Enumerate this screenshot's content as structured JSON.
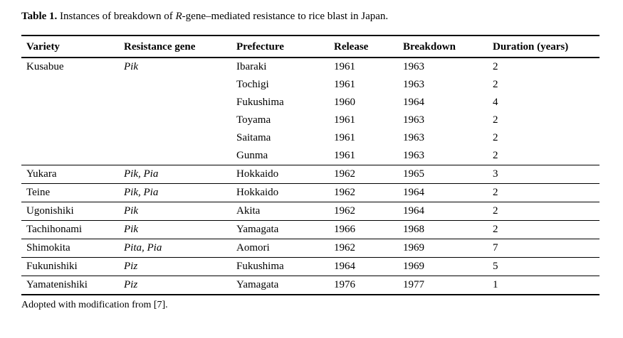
{
  "title": {
    "label": "Table 1.",
    "before_gene": " Instances of breakdown of ",
    "gene_symbol": "R",
    "after_gene": "-gene–mediated resistance to rice blast in Japan."
  },
  "table": {
    "columns": [
      "Variety",
      "Resistance gene",
      "Prefecture",
      "Release",
      "Breakdown",
      "Duration (years)"
    ],
    "groups": [
      {
        "variety": "Kusabue",
        "gene": "Pik",
        "rows": [
          {
            "prefecture": "Ibaraki",
            "release": "1961",
            "breakdown": "1963",
            "duration": "2"
          },
          {
            "prefecture": "Tochigi",
            "release": "1961",
            "breakdown": "1963",
            "duration": "2"
          },
          {
            "prefecture": "Fukushima",
            "release": "1960",
            "breakdown": "1964",
            "duration": "4"
          },
          {
            "prefecture": "Toyama",
            "release": "1961",
            "breakdown": "1963",
            "duration": "2"
          },
          {
            "prefecture": "Saitama",
            "release": "1961",
            "breakdown": "1963",
            "duration": "2"
          },
          {
            "prefecture": "Gunma",
            "release": "1961",
            "breakdown": "1963",
            "duration": "2"
          }
        ]
      },
      {
        "variety": "Yukara",
        "gene": "Pik, Pia",
        "rows": [
          {
            "prefecture": "Hokkaido",
            "release": "1962",
            "breakdown": "1965",
            "duration": "3"
          }
        ]
      },
      {
        "variety": "Teine",
        "gene": "Pik, Pia",
        "rows": [
          {
            "prefecture": "Hokkaido",
            "release": "1962",
            "breakdown": "1964",
            "duration": "2"
          }
        ]
      },
      {
        "variety": "Ugonishiki",
        "gene": "Pik",
        "rows": [
          {
            "prefecture": "Akita",
            "release": "1962",
            "breakdown": "1964",
            "duration": "2"
          }
        ]
      },
      {
        "variety": "Tachihonami",
        "gene": "Pik",
        "rows": [
          {
            "prefecture": "Yamagata",
            "release": "1966",
            "breakdown": "1968",
            "duration": "2"
          }
        ]
      },
      {
        "variety": "Shimokita",
        "gene": "Pita, Pia",
        "rows": [
          {
            "prefecture": "Aomori",
            "release": "1962",
            "breakdown": "1969",
            "duration": "7"
          }
        ]
      },
      {
        "variety": "Fukunishiki",
        "gene": "Piz",
        "rows": [
          {
            "prefecture": "Fukushima",
            "release": "1964",
            "breakdown": "1969",
            "duration": "5"
          }
        ]
      },
      {
        "variety": "Yamatenishiki",
        "gene": "Piz",
        "rows": [
          {
            "prefecture": "Yamagata",
            "release": "1976",
            "breakdown": "1977",
            "duration": "1"
          }
        ]
      }
    ],
    "footnote": "Adopted with modification from [7]."
  },
  "colors": {
    "background": "#ffffff",
    "text": "#000000",
    "rule": "#000000"
  }
}
